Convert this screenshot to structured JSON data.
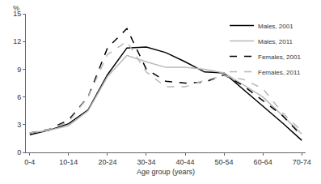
{
  "chart_data": {
    "type": "line",
    "xlabel": "Age group (years)",
    "ylabel": "%",
    "categories": [
      "0-4",
      null,
      "10-14",
      null,
      "20-24",
      null,
      "30-34",
      null,
      "40-44",
      null,
      "50-54",
      null,
      "60-64",
      null,
      "70-74"
    ],
    "series": [
      {
        "name": "Males, 2001",
        "color": "#000000",
        "line_style": "solid",
        "values": [
          1.9,
          2.4,
          3.1,
          4.6,
          8.4,
          11.3,
          11.4,
          10.8,
          9.8,
          8.7,
          8.6,
          6.8,
          5.0,
          3.2,
          1.3
        ]
      },
      {
        "name": "Males, 2011",
        "color": "#b8b8b8",
        "line_style": "solid",
        "values": [
          2.1,
          2.4,
          2.9,
          4.5,
          8.2,
          10.5,
          9.8,
          9.2,
          9.2,
          9.0,
          8.6,
          7.3,
          6.0,
          4.0,
          2.0
        ]
      },
      {
        "name": "Females, 2001",
        "color": "#000000",
        "line_style": "dash",
        "values": [
          2.1,
          2.5,
          3.5,
          6.0,
          11.3,
          13.4,
          9.0,
          7.7,
          7.5,
          7.6,
          8.4,
          7.2,
          5.6,
          4.0,
          1.8
        ]
      },
      {
        "name": "Females, 2011",
        "color": "#b8b8b8",
        "line_style": "dash",
        "values": [
          2.1,
          2.5,
          3.3,
          6.0,
          10.6,
          12.0,
          8.7,
          7.1,
          7.1,
          7.8,
          8.3,
          7.9,
          6.9,
          4.3,
          2.3
        ]
      }
    ],
    "ylim": [
      0,
      15
    ],
    "yticks": [
      0,
      3,
      6,
      9,
      12,
      15
    ],
    "grid": false,
    "legend": "upper right"
  }
}
